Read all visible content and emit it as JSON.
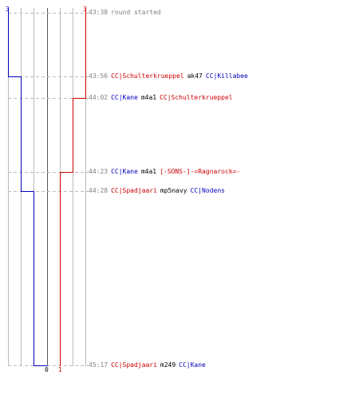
{
  "header": {
    "blue_start": "3",
    "red_start": "3"
  },
  "footer": {
    "zero_label": "0",
    "red_end": "1"
  },
  "events": [
    {
      "time": "43:38",
      "parts": [
        {
          "text": "round started",
          "color": "gray"
        }
      ]
    },
    {
      "time": "43:56",
      "parts": [
        {
          "text": "CC|Schulterkrueppel",
          "color": "red"
        },
        {
          "text": "ak47",
          "color": "black"
        },
        {
          "text": "CC|Killabee",
          "color": "blue"
        }
      ]
    },
    {
      "time": "44:02",
      "parts": [
        {
          "text": "CC|Kane",
          "color": "blue"
        },
        {
          "text": "m4a1",
          "color": "black"
        },
        {
          "text": "CC|Schulterkrueppel",
          "color": "red"
        }
      ]
    },
    {
      "time": "44:23",
      "parts": [
        {
          "text": "CC|Kane",
          "color": "blue"
        },
        {
          "text": "m4a1",
          "color": "black"
        },
        {
          "text": "[-SONS-]-=Ragnarock=-",
          "color": "red"
        }
      ]
    },
    {
      "time": "44:28",
      "parts": [
        {
          "text": "CC|Spadjaari",
          "color": "red"
        },
        {
          "text": "mp5navy",
          "color": "black"
        },
        {
          "text": "CC|Nodens",
          "color": "blue"
        }
      ]
    },
    {
      "time": "45:17",
      "parts": [
        {
          "text": "CC|Spadjaari",
          "color": "red"
        },
        {
          "text": "m249",
          "color": "black"
        },
        {
          "text": "CC|Kane",
          "color": "blue"
        }
      ]
    }
  ],
  "colors": {
    "blue_team": "#0000bb",
    "red_team": "#cc0000",
    "grid": "#bbbbbb",
    "center": "#555555",
    "dash": "#bbbbbb"
  }
}
